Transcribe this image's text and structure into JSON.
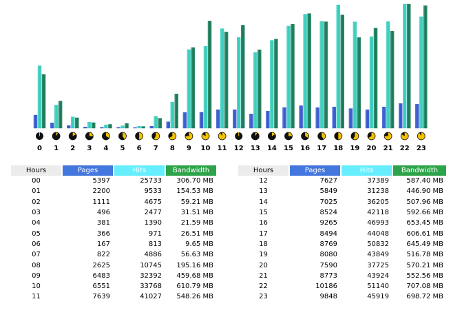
{
  "chart_data": {
    "type": "bar",
    "categories": [
      "0",
      "1",
      "2",
      "3",
      "4",
      "5",
      "6",
      "7",
      "8",
      "9",
      "10",
      "11",
      "12",
      "13",
      "14",
      "15",
      "16",
      "17",
      "18",
      "19",
      "20",
      "21",
      "22",
      "23"
    ],
    "series": [
      {
        "name": "Pages",
        "color": "#3355cc",
        "values": [
          5397,
          2200,
          1111,
          496,
          381,
          366,
          167,
          822,
          2625,
          6483,
          6551,
          7639,
          7627,
          5849,
          7025,
          8524,
          9265,
          8494,
          8769,
          8080,
          7590,
          8773,
          10186,
          9848
        ]
      },
      {
        "name": "Hits",
        "color": "#33ccbb",
        "values": [
          25733,
          9533,
          4675,
          2477,
          1390,
          971,
          813,
          4886,
          10745,
          32392,
          33768,
          41027,
          37389,
          31238,
          36205,
          42118,
          46993,
          44048,
          50832,
          43849,
          37725,
          43924,
          51140,
          45919
        ]
      },
      {
        "name": "Bandwidth",
        "color": "#117755",
        "values": [
          306.7,
          154.53,
          59.21,
          31.51,
          21.59,
          26.51,
          9.65,
          56.63,
          195.16,
          459.68,
          610.79,
          548.26,
          587.4,
          446.9,
          507.96,
          592.66,
          653.45,
          606.61,
          645.49,
          516.78,
          570.21,
          552.56,
          707.08,
          698.72
        ]
      }
    ]
  },
  "table_left": {
    "headers": {
      "hours": "Hours",
      "pages": "Pages",
      "hits": "Hits",
      "bandwidth": "Bandwidth"
    },
    "rows": [
      {
        "hour": "00",
        "pages": "5397",
        "hits": "25733",
        "bandwidth": "306.70 MB"
      },
      {
        "hour": "01",
        "pages": "2200",
        "hits": "9533",
        "bandwidth": "154.53 MB"
      },
      {
        "hour": "02",
        "pages": "1111",
        "hits": "4675",
        "bandwidth": "59.21 MB"
      },
      {
        "hour": "03",
        "pages": "496",
        "hits": "2477",
        "bandwidth": "31.51 MB"
      },
      {
        "hour": "04",
        "pages": "381",
        "hits": "1390",
        "bandwidth": "21.59 MB"
      },
      {
        "hour": "05",
        "pages": "366",
        "hits": "971",
        "bandwidth": "26.51 MB"
      },
      {
        "hour": "06",
        "pages": "167",
        "hits": "813",
        "bandwidth": "9.65 MB"
      },
      {
        "hour": "07",
        "pages": "822",
        "hits": "4886",
        "bandwidth": "56.63 MB"
      },
      {
        "hour": "08",
        "pages": "2625",
        "hits": "10745",
        "bandwidth": "195.16 MB"
      },
      {
        "hour": "09",
        "pages": "6483",
        "hits": "32392",
        "bandwidth": "459.68 MB"
      },
      {
        "hour": "10",
        "pages": "6551",
        "hits": "33768",
        "bandwidth": "610.79 MB"
      },
      {
        "hour": "11",
        "pages": "7639",
        "hits": "41027",
        "bandwidth": "548.26 MB"
      }
    ]
  },
  "table_right": {
    "headers": {
      "hours": "Hours",
      "pages": "Pages",
      "hits": "Hits",
      "bandwidth": "Bandwidth"
    },
    "rows": [
      {
        "hour": "12",
        "pages": "7627",
        "hits": "37389",
        "bandwidth": "587.40 MB"
      },
      {
        "hour": "13",
        "pages": "5849",
        "hits": "31238",
        "bandwidth": "446.90 MB"
      },
      {
        "hour": "14",
        "pages": "7025",
        "hits": "36205",
        "bandwidth": "507.96 MB"
      },
      {
        "hour": "15",
        "pages": "8524",
        "hits": "42118",
        "bandwidth": "592.66 MB"
      },
      {
        "hour": "16",
        "pages": "9265",
        "hits": "46993",
        "bandwidth": "653.45 MB"
      },
      {
        "hour": "17",
        "pages": "8494",
        "hits": "44048",
        "bandwidth": "606.61 MB"
      },
      {
        "hour": "18",
        "pages": "8769",
        "hits": "50832",
        "bandwidth": "645.49 MB"
      },
      {
        "hour": "19",
        "pages": "8080",
        "hits": "43849",
        "bandwidth": "516.78 MB"
      },
      {
        "hour": "20",
        "pages": "7590",
        "hits": "37725",
        "bandwidth": "570.21 MB"
      },
      {
        "hour": "21",
        "pages": "8773",
        "hits": "43924",
        "bandwidth": "552.56 MB"
      },
      {
        "hour": "22",
        "pages": "10186",
        "hits": "51140",
        "bandwidth": "707.08 MB"
      },
      {
        "hour": "23",
        "pages": "9848",
        "hits": "45919",
        "bandwidth": "698.72 MB"
      }
    ]
  }
}
